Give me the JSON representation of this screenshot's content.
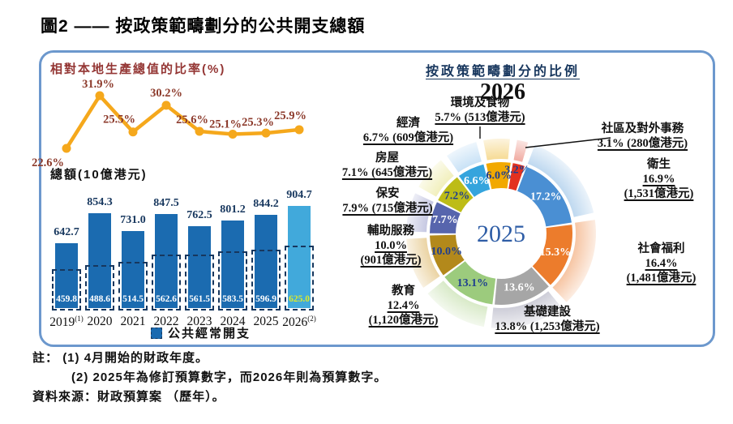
{
  "figure": {
    "title": "圖2 —— 按政策範疇劃分的公共開支總額",
    "notes_label": "註：",
    "notes": [
      "(1) 4月開始的財政年度。",
      "(2) 2025年為修訂預算數字，而2026年則為預算數字。"
    ],
    "source": "資料來源：財政預算案 （歷年）。"
  },
  "chart_data": [
    {
      "type": "line",
      "title": "相對本地生產總值的比率(%)",
      "x": [
        "2019",
        "2020",
        "2021",
        "2022",
        "2023",
        "2024",
        "2025",
        "2026"
      ],
      "values": [
        22.6,
        31.9,
        25.5,
        30.2,
        25.6,
        25.1,
        25.3,
        25.9
      ],
      "labels": [
        "22.6%",
        "31.9%",
        "25.5%",
        "30.2%",
        "25.6%",
        "25.1%",
        "25.3%",
        "25.9%"
      ],
      "line_color": "#F5A81C",
      "label_color": "#8C3A2B"
    },
    {
      "type": "bar",
      "title": "總額(10億港元)",
      "categories": [
        {
          "year": "2019",
          "sup": "(1)"
        },
        {
          "year": "2020",
          "sup": ""
        },
        {
          "year": "2021",
          "sup": ""
        },
        {
          "year": "2022",
          "sup": ""
        },
        {
          "year": "2023",
          "sup": ""
        },
        {
          "year": "2024",
          "sup": ""
        },
        {
          "year": "2025",
          "sup": ""
        },
        {
          "year": "2026",
          "sup": "(2)"
        }
      ],
      "series": [
        {
          "name": "總額",
          "values": [
            642.7,
            854.3,
            731.0,
            847.5,
            762.5,
            801.2,
            844.2,
            904.7
          ]
        },
        {
          "name": "公共經常開支",
          "values": [
            459.8,
            488.6,
            514.5,
            562.6,
            561.5,
            583.5,
            596.9,
            625.0
          ]
        }
      ],
      "legend": "公共經常開支",
      "bar_color": "#1B6BB0",
      "bar_color_2026": "#41A9DB",
      "value_color": "#17375E",
      "recurrent_value_color": "#FFFFFF",
      "recurrent_value_color_2026": "#DCE92B"
    },
    {
      "type": "donut",
      "title": "按政策範疇劃分的比例",
      "outer_ring_year": "2026",
      "center_label": "2025",
      "segments": [
        {
          "name": "環境及食物",
          "pct_2026": 5.7,
          "amount_2026_yi_hkd": 513,
          "label_2026_lines": [
            "5.7% (513億港元)"
          ],
          "pct_2025": 6.0,
          "label_2025": "6.0%",
          "color": "#F2A900",
          "outer_color": "#F6DA92",
          "pct_text_color": "#1F3E8F"
        },
        {
          "name": "社區及對外事務",
          "pct_2026": 3.1,
          "amount_2026_yi_hkd": 280,
          "label_2026_lines": [
            "3.1% (280億港元)"
          ],
          "pct_2025": 3.2,
          "label_2025": "3.2%",
          "color": "#E3311F",
          "outer_color": "#F0A89E",
          "pct_text_color": "#1F3E8F"
        },
        {
          "name": "衛生",
          "pct_2026": 16.9,
          "amount_2026_yi_hkd": 1531,
          "label_2026_lines": [
            "16.9%",
            "(1,531億港元)"
          ],
          "pct_2025": 17.2,
          "label_2025": "17.2%",
          "color": "#4A8FD3",
          "outer_color": "#BCD7EF",
          "pct_text_color": "#FFFFFF"
        },
        {
          "name": "社會福利",
          "pct_2026": 16.4,
          "amount_2026_yi_hkd": 1481,
          "label_2026_lines": [
            "16.4%",
            "(1,481億港元)"
          ],
          "pct_2025": 15.3,
          "label_2025": "15.3%",
          "color": "#EC7C2C",
          "outer_color": "#F6C3A0",
          "pct_text_color": "#FFFFFF"
        },
        {
          "name": "基礎建設",
          "pct_2026": 13.8,
          "amount_2026_yi_hkd": 1253,
          "label_2026_lines": [
            "13.8% (1,253億港元)"
          ],
          "pct_2025": 13.6,
          "label_2025": "13.6%",
          "color": "#A6A6A6",
          "outer_color": "#CBCBD6",
          "pct_text_color": "#FFFFFF"
        },
        {
          "name": "教育",
          "pct_2026": 12.4,
          "amount_2026_yi_hkd": 1120,
          "label_2026_lines": [
            "12.4%",
            "(1,120億港元)"
          ],
          "pct_2025": 13.1,
          "label_2025": "13.1%",
          "color": "#9CCB7D",
          "outer_color": "#D7E9C6",
          "pct_text_color": "#1F3E8F"
        },
        {
          "name": "輔助服務",
          "pct_2026": 10.0,
          "amount_2026_yi_hkd": 901,
          "label_2026_lines": [
            "10.0%",
            "(901億港元)"
          ],
          "pct_2025": 10.0,
          "label_2025": "10.0%",
          "color": "#B3891B",
          "outer_color": "#EAD2A0",
          "pct_text_color": "#1F3E8F"
        },
        {
          "name": "保安",
          "pct_2026": 7.9,
          "amount_2026_yi_hkd": 715,
          "label_2026_lines": [
            "7.9% (715億港元)"
          ],
          "pct_2025": 7.7,
          "label_2025": "7.7%",
          "color": "#5765AD",
          "outer_color": "#C4C6E1",
          "pct_text_color": "#FFFFFF"
        },
        {
          "name": "房屋",
          "pct_2026": 7.1,
          "amount_2026_yi_hkd": 645,
          "label_2026_lines": [
            "7.1% (645億港元)"
          ],
          "pct_2025": 7.2,
          "label_2025": "7.2%",
          "color": "#BDBC17",
          "outer_color": "#F1EFBA",
          "pct_text_color": "#1F3E8F"
        },
        {
          "name": "經濟",
          "pct_2026": 6.7,
          "amount_2026_yi_hkd": 609,
          "label_2026_lines": [
            "6.7% (609億港元)"
          ],
          "pct_2025": 6.6,
          "label_2025": "6.6%",
          "color": "#35A4DD",
          "outer_color": "#C7E1F6",
          "pct_text_color": "#FFFFFF"
        }
      ]
    }
  ]
}
